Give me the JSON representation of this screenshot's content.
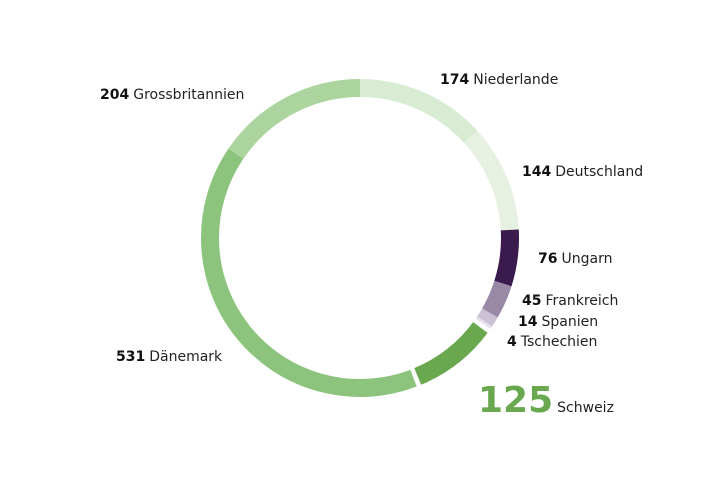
{
  "chart_data": {
    "type": "donut",
    "slices": [
      {
        "name": "Niederlande",
        "value": 174,
        "color": "#d8ebd3"
      },
      {
        "name": "Deutschland",
        "value": 144,
        "color": "#e7f1e2"
      },
      {
        "name": "Ungarn",
        "value": 76,
        "color": "#3b1a4e"
      },
      {
        "name": "Frankreich",
        "value": 45,
        "color": "#9988a6"
      },
      {
        "name": "Spanien",
        "value": 14,
        "color": "#cbc1d5"
      },
      {
        "name": "Tschechien",
        "value": 4,
        "color": "#e6e0ec"
      },
      {
        "name": "Schweiz",
        "value": 125,
        "color": "#69a84f"
      },
      {
        "name": "Dänemark",
        "value": 531,
        "color": "#8cc47d"
      },
      {
        "name": "Grossbritannien",
        "value": 204,
        "color": "#acd49e"
      }
    ]
  }
}
